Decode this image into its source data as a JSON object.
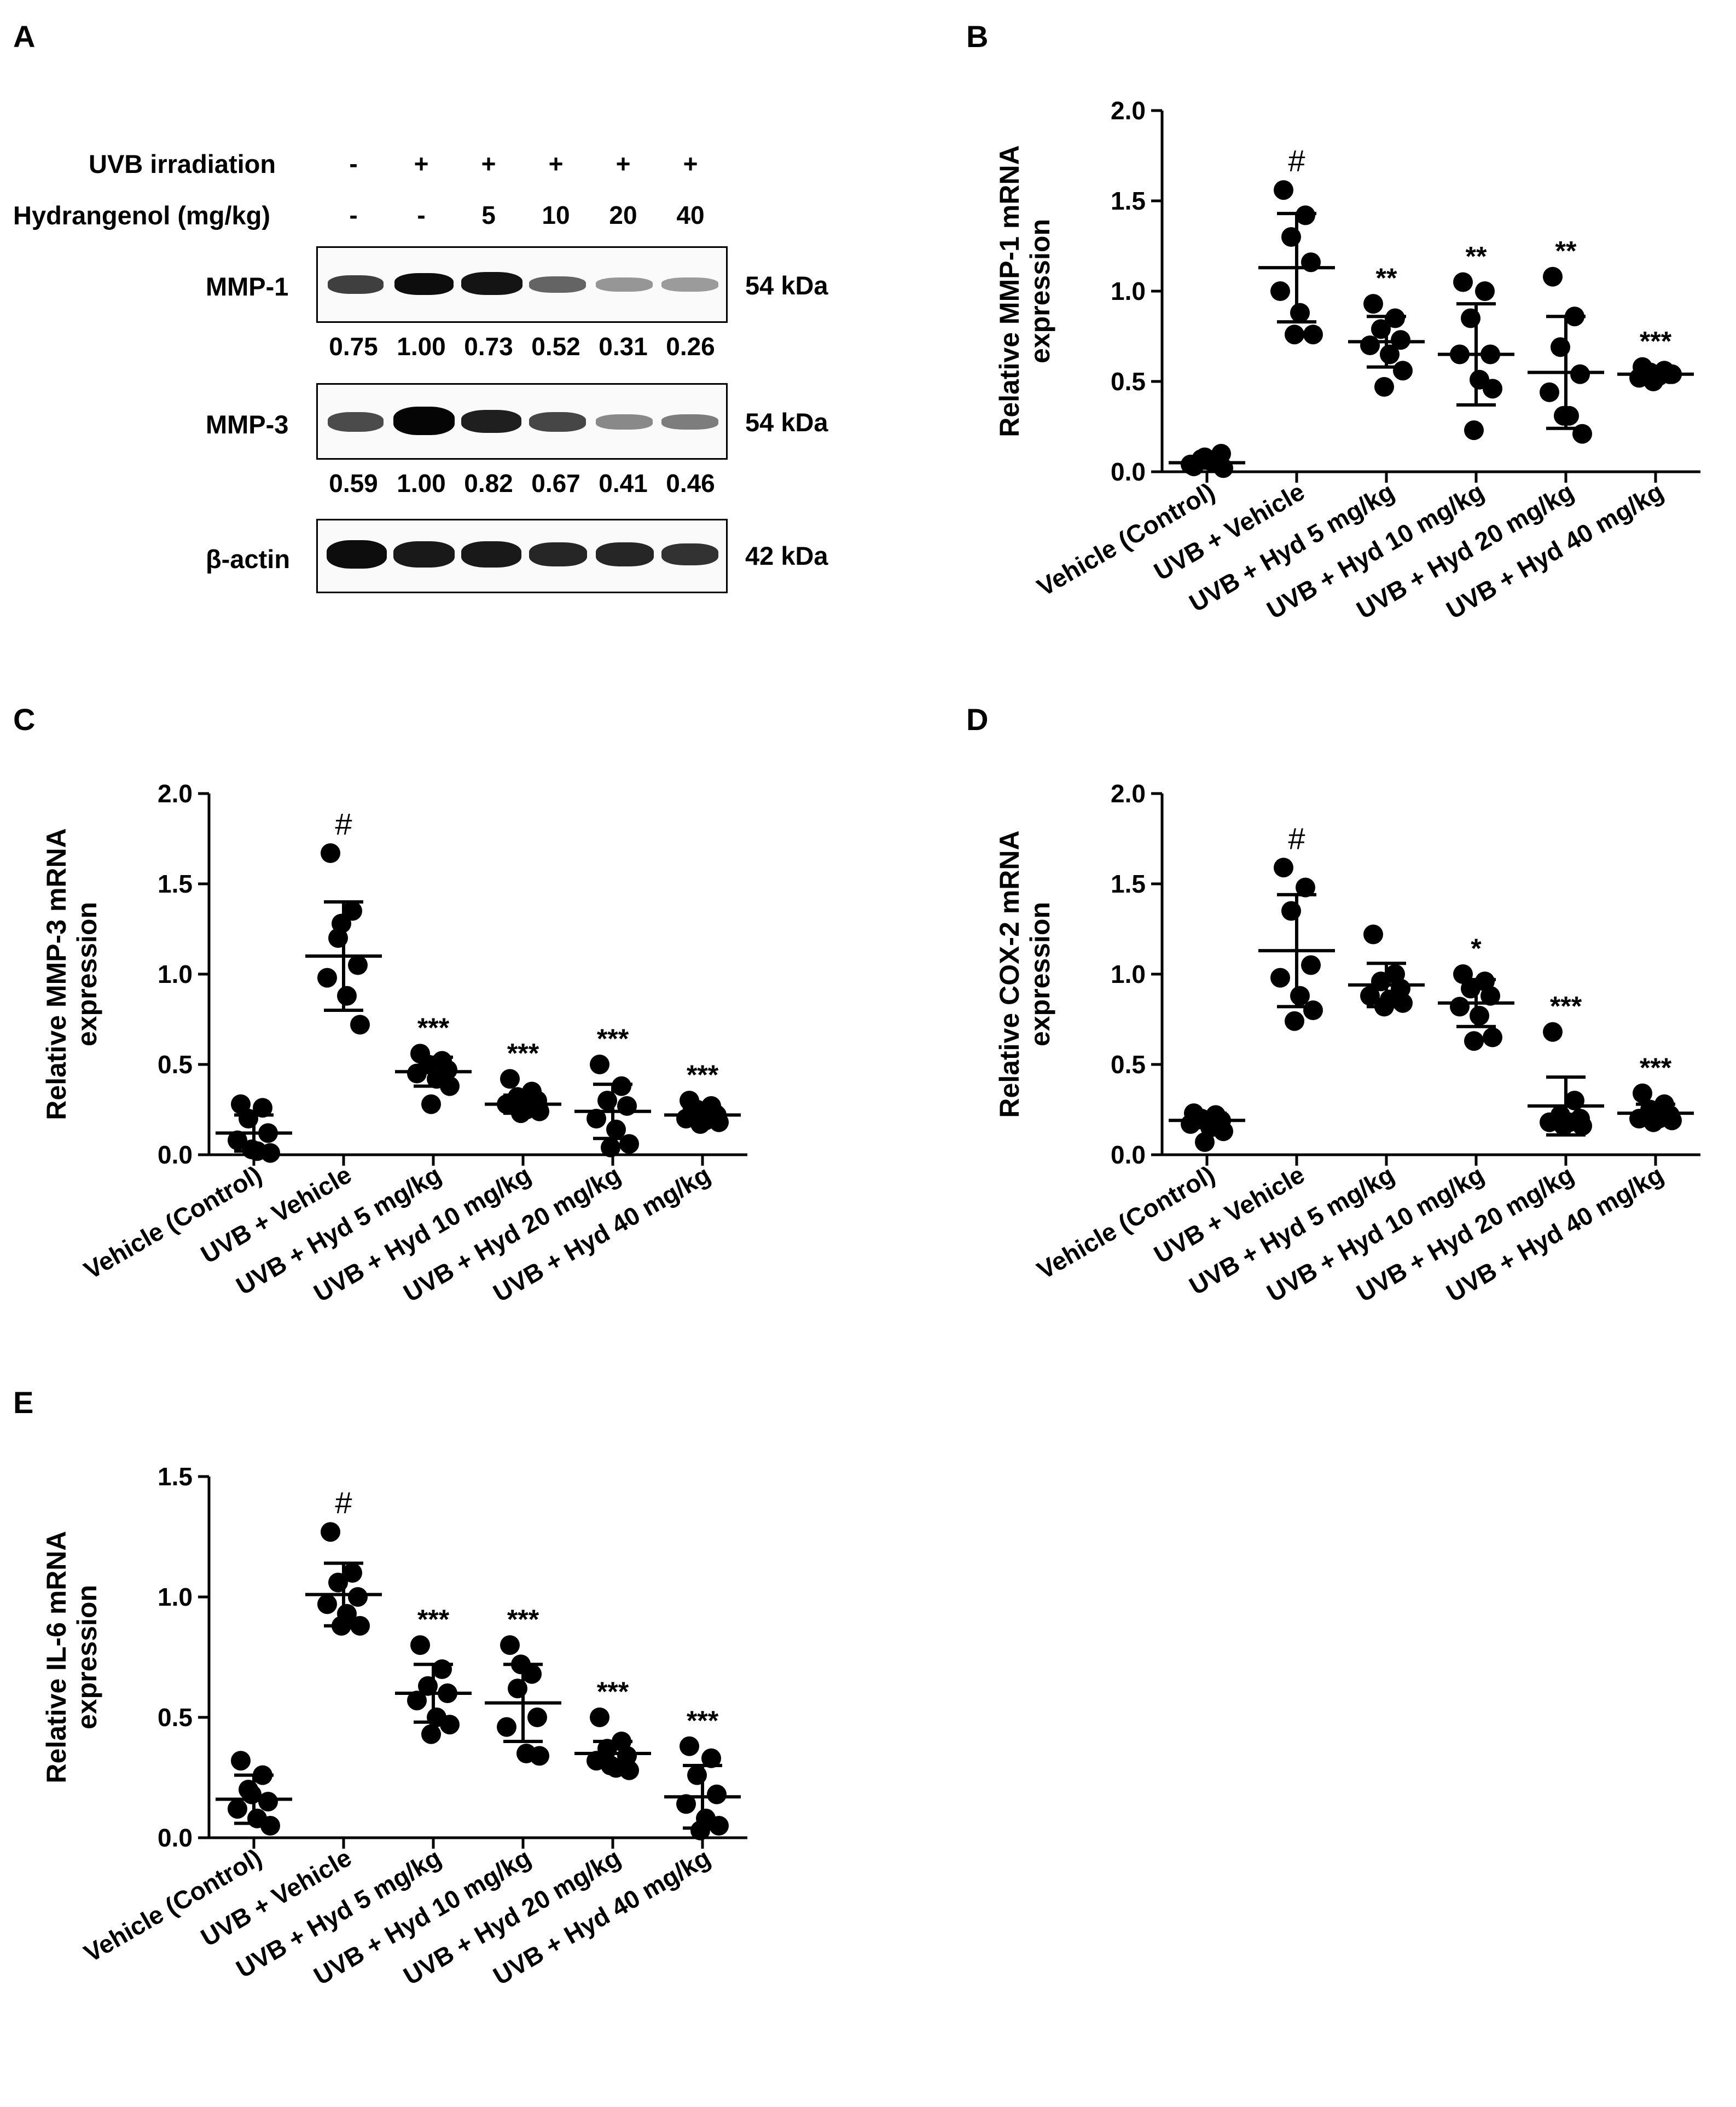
{
  "panel_a": {
    "letter": "A",
    "uvb_label": "UVB irradiation",
    "hyd_label": "Hydrangenol (mg/kg)",
    "uvb_signs": [
      "-",
      "+",
      "+",
      "+",
      "+",
      "+"
    ],
    "hyd_doses": [
      "-",
      "-",
      "5",
      "10",
      "20",
      "40"
    ],
    "blots": [
      {
        "name": "MMP-1",
        "size": "54 kDa",
        "ratios": [
          "0.75",
          "1.00",
          "0.73",
          "0.52",
          "0.31",
          "0.26"
        ]
      },
      {
        "name": "MMP-3",
        "size": "54 kDa",
        "ratios": [
          "0.59",
          "1.00",
          "0.82",
          "0.67",
          "0.41",
          "0.46"
        ]
      },
      {
        "name": "β-actin",
        "size": "42 kDa",
        "ratios": []
      }
    ]
  },
  "chart_data": [
    {
      "panel": "B",
      "type": "scatter",
      "ylabel": [
        "Relative MMP-1 mRNA",
        "expression"
      ],
      "ylim": [
        0,
        2.0
      ],
      "yticks": [
        "0.0",
        "0.5",
        "1.0",
        "1.5",
        "2.0"
      ],
      "categories": [
        "Vehicle (Control)",
        "UVB + Vehicle",
        "UVB + Hyd 5 mg/kg",
        "UVB + Hyd 10 mg/kg",
        "UVB + Hyd 20 mg/kg",
        "UVB + Hyd 40 mg/kg"
      ],
      "points": [
        [
          0.03,
          0.05,
          0.07,
          0.1,
          0.04,
          0.06,
          0.02,
          0.08
        ],
        [
          1.56,
          1.42,
          1.3,
          1.16,
          1.0,
          0.88,
          0.76,
          0.76
        ],
        [
          0.93,
          0.85,
          0.79,
          0.73,
          0.7,
          0.65,
          0.56,
          0.47
        ],
        [
          1.05,
          1.0,
          0.85,
          0.65,
          0.65,
          0.51,
          0.46,
          0.23
        ],
        [
          1.08,
          0.86,
          0.69,
          0.54,
          0.44,
          0.31,
          0.21,
          0.31
        ],
        [
          0.58,
          0.56,
          0.55,
          0.54,
          0.52,
          0.53,
          0.54,
          0.5
        ]
      ],
      "mean": [
        0.05,
        1.13,
        0.72,
        0.65,
        0.55,
        0.54
      ],
      "sd": [
        0.03,
        0.3,
        0.14,
        0.28,
        0.31,
        0.03
      ],
      "sig": [
        "",
        "#",
        "**",
        "**",
        "**",
        "***"
      ]
    },
    {
      "panel": "C",
      "type": "scatter",
      "ylabel": [
        "Relative MMP-3 mRNA",
        "expression"
      ],
      "ylim": [
        0,
        2.0
      ],
      "yticks": [
        "0.0",
        "0.5",
        "1.0",
        "1.5",
        "2.0"
      ],
      "categories": [
        "Vehicle (Control)",
        "UVB + Vehicle",
        "UVB + Hyd 5 mg/kg",
        "UVB + Hyd 10 mg/kg",
        "UVB + Hyd 20 mg/kg",
        "UVB + Hyd 40 mg/kg"
      ],
      "points": [
        [
          0.28,
          0.26,
          0.2,
          0.12,
          0.08,
          0.02,
          0.01,
          0.03
        ],
        [
          1.67,
          1.35,
          1.2,
          1.05,
          0.98,
          0.88,
          0.72,
          1.28
        ],
        [
          0.56,
          0.52,
          0.5,
          0.47,
          0.45,
          0.42,
          0.38,
          0.28
        ],
        [
          0.42,
          0.35,
          0.32,
          0.3,
          0.28,
          0.25,
          0.24,
          0.23
        ],
        [
          0.5,
          0.38,
          0.3,
          0.27,
          0.2,
          0.14,
          0.06,
          0.04
        ],
        [
          0.3,
          0.27,
          0.25,
          0.22,
          0.2,
          0.19,
          0.18,
          0.17
        ]
      ],
      "mean": [
        0.12,
        1.1,
        0.46,
        0.28,
        0.24,
        0.22
      ],
      "sd": [
        0.1,
        0.3,
        0.08,
        0.05,
        0.15,
        0.04
      ],
      "sig": [
        "",
        "#",
        "***",
        "***",
        "***",
        "***"
      ]
    },
    {
      "panel": "D",
      "type": "scatter",
      "ylabel": [
        "Relative COX-2 mRNA",
        "expression"
      ],
      "ylim": [
        0,
        2.0
      ],
      "yticks": [
        "0.0",
        "0.5",
        "1.0",
        "1.5",
        "2.0"
      ],
      "categories": [
        "Vehicle (Control)",
        "UVB + Vehicle",
        "UVB + Hyd 5 mg/kg",
        "UVB + Hyd 10 mg/kg",
        "UVB + Hyd 20 mg/kg",
        "UVB + Hyd 40 mg/kg"
      ],
      "points": [
        [
          0.23,
          0.22,
          0.2,
          0.19,
          0.17,
          0.15,
          0.13,
          0.07
        ],
        [
          1.59,
          1.48,
          1.35,
          1.05,
          0.98,
          0.88,
          0.8,
          0.74
        ],
        [
          1.22,
          1.0,
          0.96,
          0.92,
          0.88,
          0.86,
          0.84,
          0.82
        ],
        [
          1.0,
          0.96,
          0.92,
          0.88,
          0.82,
          0.77,
          0.65,
          0.63
        ],
        [
          0.68,
          0.3,
          0.22,
          0.2,
          0.18,
          0.18,
          0.16,
          0.16
        ],
        [
          0.34,
          0.28,
          0.25,
          0.22,
          0.2,
          0.2,
          0.19,
          0.18
        ]
      ],
      "mean": [
        0.19,
        1.13,
        0.94,
        0.84,
        0.27,
        0.23
      ],
      "sd": [
        0.04,
        0.31,
        0.12,
        0.13,
        0.16,
        0.05
      ],
      "sig": [
        "",
        "#",
        "",
        "*",
        "***",
        "***"
      ]
    },
    {
      "panel": "E",
      "type": "scatter",
      "ylabel": [
        "Relative IL-6 mRNA",
        "expression"
      ],
      "ylim": [
        0,
        1.5
      ],
      "yticks": [
        "0.0",
        "0.5",
        "1.0",
        "1.5"
      ],
      "categories": [
        "Vehicle (Control)",
        "UVB + Vehicle",
        "UVB + Hyd 5 mg/kg",
        "UVB + Hyd 10 mg/kg",
        "UVB + Hyd 20 mg/kg",
        "UVB + Hyd 40 mg/kg"
      ],
      "points": [
        [
          0.32,
          0.26,
          0.2,
          0.15,
          0.12,
          0.08,
          0.05,
          0.18
        ],
        [
          1.27,
          1.1,
          1.06,
          1.0,
          0.97,
          0.93,
          0.88,
          0.88
        ],
        [
          0.8,
          0.7,
          0.63,
          0.6,
          0.57,
          0.5,
          0.47,
          0.43
        ],
        [
          0.8,
          0.68,
          0.62,
          0.5,
          0.46,
          0.35,
          0.34,
          0.72
        ],
        [
          0.5,
          0.4,
          0.37,
          0.34,
          0.32,
          0.29,
          0.28,
          0.3
        ],
        [
          0.38,
          0.33,
          0.26,
          0.18,
          0.14,
          0.08,
          0.05,
          0.03
        ]
      ],
      "mean": [
        0.16,
        1.01,
        0.6,
        0.56,
        0.35,
        0.17
      ],
      "sd": [
        0.1,
        0.13,
        0.12,
        0.16,
        0.05,
        0.13
      ],
      "sig": [
        "",
        "#",
        "***",
        "***",
        "***",
        "***"
      ]
    }
  ]
}
